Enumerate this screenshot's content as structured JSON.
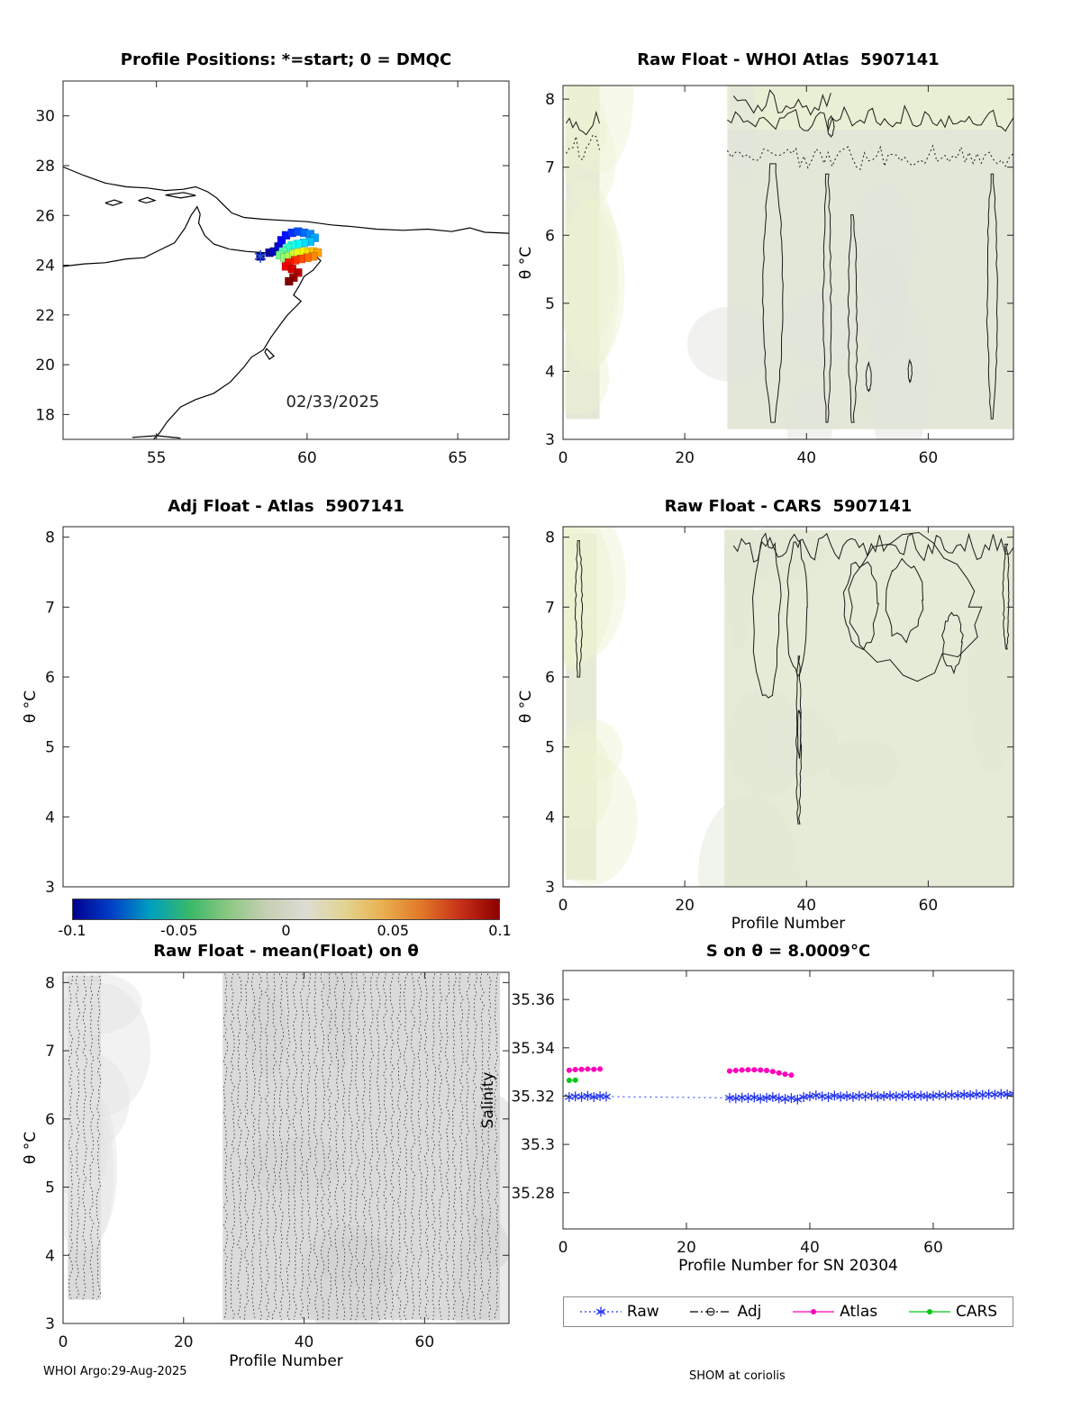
{
  "page": {
    "footer_left": "WHOI Argo:29-Aug-2025",
    "footer_right": "SHOM at coriolis"
  },
  "chart_data": [
    {
      "id": "map",
      "type": "scatter",
      "title": "Profile Positions: *=start; 0 = DMQC",
      "xlim": [
        51.9,
        66.7
      ],
      "ylim": [
        17.0,
        31.4
      ],
      "xticks": [
        55,
        60,
        65
      ],
      "yticks": [
        18,
        20,
        22,
        24,
        26,
        28,
        30
      ],
      "annotation": {
        "text": "02/33/2025",
        "x": 59.3,
        "y": 18.3
      },
      "start_marker": {
        "x": 58.45,
        "y": 24.35,
        "color": "#2a4fdf"
      },
      "coast_color": "#000000",
      "coastlines": [
        [
          [
            51.9,
            27.95
          ],
          [
            52.6,
            27.6
          ],
          [
            53.3,
            27.3
          ],
          [
            54.0,
            27.15
          ],
          [
            54.7,
            27.1
          ],
          [
            55.3,
            27.0
          ],
          [
            55.9,
            27.05
          ],
          [
            56.3,
            27.15
          ],
          [
            56.7,
            26.95
          ],
          [
            57.0,
            26.7
          ],
          [
            57.2,
            26.45
          ],
          [
            57.5,
            26.1
          ],
          [
            57.9,
            25.92
          ],
          [
            58.5,
            25.85
          ],
          [
            59.2,
            25.8
          ],
          [
            60.0,
            25.75
          ],
          [
            60.8,
            25.62
          ],
          [
            61.5,
            25.55
          ],
          [
            62.3,
            25.45
          ],
          [
            63.2,
            25.4
          ],
          [
            64.0,
            25.45
          ],
          [
            64.8,
            25.35
          ],
          [
            65.4,
            25.5
          ],
          [
            65.9,
            25.32
          ],
          [
            66.7,
            25.28
          ]
        ],
        [
          [
            51.9,
            23.95
          ],
          [
            52.6,
            24.05
          ],
          [
            53.3,
            24.1
          ],
          [
            54.0,
            24.25
          ],
          [
            54.6,
            24.3
          ],
          [
            55.1,
            24.6
          ],
          [
            55.6,
            24.9
          ],
          [
            55.95,
            25.5
          ],
          [
            56.15,
            26.0
          ],
          [
            56.35,
            26.35
          ],
          [
            56.45,
            26.05
          ],
          [
            56.4,
            25.7
          ],
          [
            56.6,
            25.2
          ],
          [
            56.9,
            24.85
          ],
          [
            57.4,
            24.65
          ],
          [
            58.0,
            24.55
          ],
          [
            58.6,
            24.5
          ],
          [
            59.2,
            24.45
          ],
          [
            59.8,
            24.4
          ],
          [
            60.3,
            24.35
          ],
          [
            60.45,
            24.18
          ],
          [
            60.2,
            23.8
          ],
          [
            59.9,
            23.55
          ],
          [
            59.75,
            23.2
          ],
          [
            59.55,
            22.8
          ],
          [
            59.8,
            22.55
          ],
          [
            59.6,
            22.3
          ],
          [
            59.35,
            22.0
          ],
          [
            59.1,
            21.6
          ],
          [
            58.8,
            21.1
          ],
          [
            58.55,
            20.6
          ],
          [
            58.15,
            20.3
          ],
          [
            57.9,
            19.9
          ],
          [
            57.45,
            19.3
          ],
          [
            56.9,
            18.85
          ],
          [
            56.3,
            18.6
          ],
          [
            55.8,
            18.3
          ],
          [
            55.35,
            17.7
          ],
          [
            55.1,
            17.25
          ],
          [
            54.9,
            17.0
          ]
        ],
        [
          [
            58.65,
            20.65
          ],
          [
            58.9,
            20.35
          ],
          [
            58.75,
            20.22
          ],
          [
            58.6,
            20.5
          ],
          [
            58.65,
            20.65
          ]
        ],
        [
          [
            53.3,
            26.5
          ],
          [
            53.6,
            26.62
          ],
          [
            53.85,
            26.52
          ],
          [
            53.55,
            26.4
          ],
          [
            53.3,
            26.5
          ]
        ],
        [
          [
            54.4,
            26.6
          ],
          [
            54.7,
            26.72
          ],
          [
            54.95,
            26.6
          ],
          [
            54.65,
            26.5
          ],
          [
            54.4,
            26.6
          ]
        ],
        [
          [
            55.3,
            26.82
          ],
          [
            55.9,
            26.92
          ],
          [
            56.3,
            26.8
          ],
          [
            55.8,
            26.7
          ],
          [
            55.3,
            26.82
          ]
        ],
        [
          [
            54.2,
            17.08
          ],
          [
            55.0,
            17.15
          ],
          [
            55.8,
            17.05
          ]
        ]
      ],
      "float_positions": [
        [
          58.45,
          24.35
        ],
        [
          58.75,
          24.5
        ],
        [
          58.9,
          24.55
        ],
        [
          59.05,
          24.75
        ],
        [
          59.15,
          25.0
        ],
        [
          59.3,
          25.2
        ],
        [
          59.5,
          25.3
        ],
        [
          59.7,
          25.35
        ],
        [
          59.9,
          25.3
        ],
        [
          60.1,
          25.25
        ],
        [
          60.25,
          25.1
        ],
        [
          60.1,
          24.95
        ],
        [
          59.9,
          24.9
        ],
        [
          59.7,
          24.85
        ],
        [
          59.5,
          24.8
        ],
        [
          59.35,
          24.7
        ],
        [
          59.2,
          24.55
        ],
        [
          59.1,
          24.4
        ],
        [
          59.25,
          24.3
        ],
        [
          59.4,
          24.35
        ],
        [
          59.55,
          24.45
        ],
        [
          59.7,
          24.5
        ],
        [
          59.9,
          24.55
        ],
        [
          60.05,
          24.5
        ],
        [
          60.2,
          24.55
        ],
        [
          60.35,
          24.5
        ],
        [
          60.2,
          24.35
        ],
        [
          60.0,
          24.3
        ],
        [
          59.8,
          24.25
        ],
        [
          59.6,
          24.2
        ],
        [
          59.4,
          24.1
        ],
        [
          59.3,
          23.95
        ],
        [
          59.5,
          23.85
        ],
        [
          59.7,
          23.7
        ],
        [
          59.55,
          23.5
        ],
        [
          59.4,
          23.35
        ]
      ]
    },
    {
      "id": "raw_whoi",
      "type": "contour",
      "title": "Raw Float - WHOI Atlas  5907141",
      "ylabel": "θ °C",
      "xlim": [
        0,
        74
      ],
      "ylim": [
        3,
        8.2
      ],
      "xticks": [
        0,
        20,
        40,
        60
      ],
      "yticks": [
        3,
        4,
        5,
        6,
        7,
        8
      ],
      "fill": "#e3e7d8",
      "tints": [
        "#edf2d2",
        "#dfe2dc"
      ],
      "bands": [
        {
          "x0": 0.5,
          "x1": 6,
          "y0": 3.3,
          "y1": 8.2
        },
        {
          "x0": 27,
          "x1": 74,
          "y0": 3.15,
          "y1": 8.2
        },
        {
          "x0": 27,
          "x1": 74,
          "y0": 7.55,
          "y1": 8.2,
          "fill": "#e9efd4"
        },
        {
          "x0": 0.5,
          "x1": 6,
          "y0": 7.5,
          "y1": 8.2,
          "fill": "#e9efd4"
        }
      ],
      "contours": [
        {
          "kind": "h",
          "y": 7.62,
          "x0": 0.5,
          "x1": 6,
          "style": "solid"
        },
        {
          "kind": "h",
          "y": 7.3,
          "x0": 0.5,
          "x1": 6,
          "style": "dotted"
        },
        {
          "kind": "h",
          "y": 7.7,
          "x0": 27,
          "x1": 74,
          "style": "solid"
        },
        {
          "kind": "h",
          "y": 7.15,
          "x0": 27,
          "x1": 74,
          "style": "dotted"
        },
        {
          "kind": "h",
          "y": 7.95,
          "x0": 28,
          "x1": 44,
          "style": "solid"
        },
        {
          "kind": "vloop",
          "x": 34.5,
          "y0": 3.25,
          "y1": 7.05,
          "hw": 1.6
        },
        {
          "kind": "vloop",
          "x": 43.4,
          "y0": 3.25,
          "y1": 6.9,
          "hw": 0.6
        },
        {
          "kind": "vloop",
          "x": 47.6,
          "y0": 3.25,
          "y1": 6.3,
          "hw": 0.7
        },
        {
          "kind": "vloop",
          "x": 70.5,
          "y0": 3.3,
          "y1": 6.9,
          "hw": 0.8
        },
        {
          "kind": "blob",
          "x": 50.2,
          "y": 3.9,
          "rx": 0.4,
          "ry": 0.2
        },
        {
          "kind": "blob",
          "x": 57.0,
          "y": 4.0,
          "rx": 0.3,
          "ry": 0.15
        },
        {
          "kind": "blob",
          "x": 44.0,
          "y": 7.6,
          "rx": 0.5,
          "ry": 0.15
        }
      ]
    },
    {
      "id": "adj",
      "type": "empty",
      "title": "Adj Float - Atlas  5907141",
      "ylabel": "θ °C",
      "xlim": [
        0,
        1
      ],
      "ylim": [
        3,
        8.15
      ],
      "xticks": [],
      "yticks": [
        3,
        4,
        5,
        6,
        7,
        8
      ],
      "colorbar": {
        "ticks": [
          "-0.1",
          "-0.05",
          "0",
          "0.05",
          "0.1"
        ],
        "colors": [
          "#000090",
          "#0040c8",
          "#00a0c0",
          "#38b868",
          "#8cc882",
          "#c6cfb4",
          "#dcdcd4",
          "#e2d492",
          "#eab050",
          "#e07828",
          "#c83018",
          "#8c0000"
        ]
      }
    },
    {
      "id": "raw_cars",
      "type": "contour",
      "title": "Raw Float - CARS  5907141",
      "xlabel": "Profile Number",
      "ylabel": "θ °C",
      "xlim": [
        0,
        74
      ],
      "ylim": [
        3,
        8.15
      ],
      "xticks": [
        0,
        20,
        40,
        60
      ],
      "yticks": [
        3,
        4,
        5,
        6,
        7,
        8
      ],
      "fill": "#e5ebd6",
      "tints": [
        "#edf2d0",
        "#e0e6d4"
      ],
      "bands": [
        {
          "x0": 0.5,
          "x1": 5.5,
          "y0": 3.1,
          "y1": 8.05
        },
        {
          "x0": 26.5,
          "x1": 74,
          "y0": 3.0,
          "y1": 8.1
        }
      ],
      "contours": [
        {
          "kind": "vloop",
          "x": 2.6,
          "y0": 6.0,
          "y1": 7.95,
          "hw": 0.5
        },
        {
          "kind": "blob",
          "x": 33.5,
          "y": 6.9,
          "rx": 2.2,
          "ry": 1.1
        },
        {
          "kind": "vloop",
          "x": 38.7,
          "y0": 3.9,
          "y1": 6.3,
          "hw": 0.35
        },
        {
          "kind": "blob",
          "x": 38.4,
          "y": 7.0,
          "rx": 1.6,
          "ry": 0.9
        },
        {
          "kind": "blob",
          "x": 57.0,
          "y": 7.0,
          "rx": 11.0,
          "ry": 0.95
        },
        {
          "kind": "blob",
          "x": 49.0,
          "y": 7.05,
          "rx": 2.6,
          "ry": 0.6
        },
        {
          "kind": "blob",
          "x": 56.0,
          "y": 7.1,
          "rx": 3.0,
          "ry": 0.55
        },
        {
          "kind": "blob",
          "x": 64.0,
          "y": 6.5,
          "rx": 1.6,
          "ry": 0.4
        },
        {
          "kind": "vloop",
          "x": 72.8,
          "y0": 6.4,
          "y1": 7.9,
          "hw": 0.45
        },
        {
          "kind": "blob",
          "x": 38.8,
          "y": 5.2,
          "rx": 0.25,
          "ry": 0.35
        },
        {
          "kind": "h",
          "y": 7.85,
          "x0": 28,
          "x1": 74,
          "style": "solid"
        }
      ]
    },
    {
      "id": "raw_mean",
      "type": "contour",
      "title": "Raw Float - mean(Float) on θ",
      "xlabel": "Profile Number",
      "ylabel": "θ °C",
      "xlim": [
        0,
        74
      ],
      "ylim": [
        3,
        8.15
      ],
      "xticks": [
        0,
        20,
        40,
        60
      ],
      "yticks": [
        3,
        4,
        5,
        6,
        7,
        8
      ],
      "fill": "#dadada",
      "tints": [
        "#e3e3e3",
        "#d0d0d0"
      ],
      "texture": "dots",
      "bands": [
        {
          "x0": 0.8,
          "x1": 6.3,
          "y0": 3.35,
          "y1": 8.1
        },
        {
          "x0": 26.5,
          "x1": 72.5,
          "y0": 3.05,
          "y1": 8.13
        }
      ],
      "contours": []
    },
    {
      "id": "salinity",
      "type": "series",
      "title": "S on θ = 8.0009°C",
      "xlabel": "Profile Number for SN 20304",
      "ylabel": "Salinity",
      "xlim": [
        0,
        73
      ],
      "ylim": [
        35.265,
        35.372
      ],
      "xticks": [
        0,
        20,
        40,
        60
      ],
      "yticks": [
        35.28,
        35.3,
        35.32,
        35.34,
        35.36
      ],
      "series": [
        {
          "name": "Raw",
          "color": "#2233ee",
          "line": "dotted",
          "marker": "asterisk",
          "gap_split": false,
          "x": [
            1,
            2,
            3,
            4,
            5,
            6,
            7,
            27,
            28,
            29,
            30,
            31,
            32,
            33,
            34,
            35,
            36,
            37,
            38,
            39,
            40,
            41,
            42,
            43,
            44,
            45,
            46,
            47,
            48,
            49,
            50,
            51,
            52,
            53,
            54,
            55,
            56,
            57,
            58,
            59,
            60,
            61,
            62,
            63,
            64,
            65,
            66,
            67,
            68,
            69,
            70,
            71,
            72,
            73,
            74,
            75
          ],
          "y": [
            35.3196,
            35.3199,
            35.3197,
            35.3201,
            35.3196,
            35.32,
            35.3198,
            35.3193,
            35.3191,
            35.3194,
            35.3192,
            35.3195,
            35.319,
            35.3193,
            35.3196,
            35.3191,
            35.3188,
            35.3192,
            35.3186,
            35.3196,
            35.3199,
            35.3203,
            35.3199,
            35.3196,
            35.3202,
            35.3198,
            35.32,
            35.3197,
            35.3201,
            35.3199,
            35.3203,
            35.3198,
            35.32,
            35.3202,
            35.3199,
            35.3201,
            35.3203,
            35.32,
            35.3202,
            35.3199,
            35.3201,
            35.3204,
            35.3202,
            35.3205,
            35.3203,
            35.3206,
            35.3204,
            35.3207,
            35.3205,
            35.3208,
            35.3206,
            35.3209,
            35.3207,
            35.321,
            35.3208,
            35.3209
          ]
        },
        {
          "name": "Adj",
          "color": "#000000",
          "line": "dashdot",
          "marker": "circle",
          "gap_split": true,
          "x": [],
          "y": []
        },
        {
          "name": "Atlas",
          "color": "#ff00bb",
          "line": "solid",
          "marker": "dot",
          "gap_split": true,
          "x": [
            1,
            2,
            3,
            4,
            5,
            6,
            27,
            28,
            29,
            30,
            31,
            32,
            33,
            34,
            35,
            36,
            37
          ],
          "y": [
            35.3307,
            35.331,
            35.3311,
            35.3312,
            35.3311,
            35.3312,
            35.3304,
            35.3306,
            35.3308,
            35.3309,
            35.3309,
            35.3308,
            35.3306,
            35.3302,
            35.3296,
            35.3291,
            35.3287
          ]
        },
        {
          "name": "CARS",
          "color": "#00c814",
          "line": "solid",
          "marker": "dot",
          "gap_split": true,
          "x": [
            1,
            2
          ],
          "y": [
            35.3265,
            35.3266
          ]
        }
      ],
      "legend": [
        "Raw",
        "Adj",
        "Atlas",
        "CARS"
      ]
    }
  ]
}
